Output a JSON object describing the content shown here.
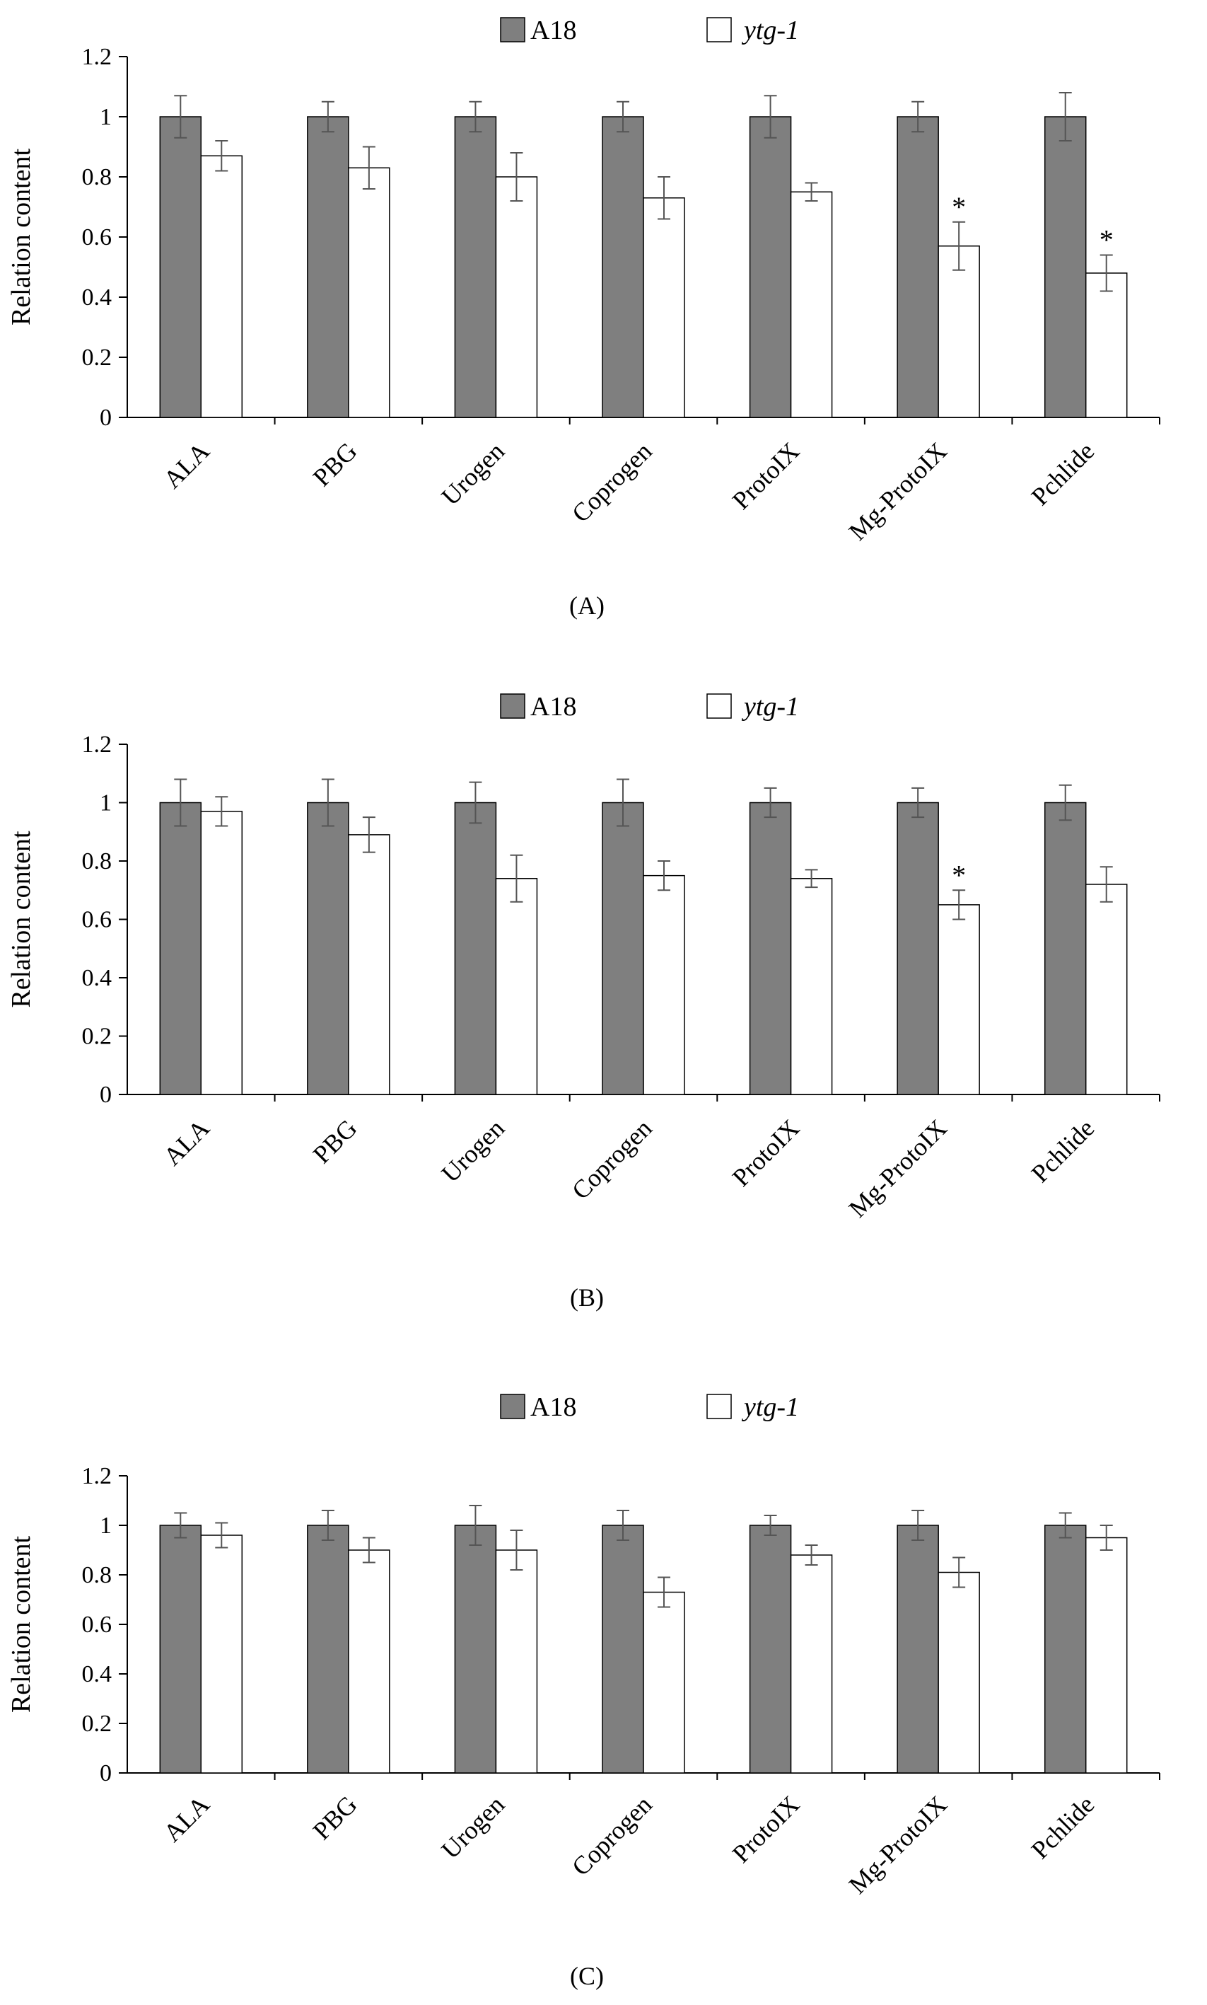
{
  "colors": {
    "series1_fill": "#7f7f7f",
    "series2_fill": "#ffffff",
    "axis": "#000000",
    "error_bar": "#555555"
  },
  "chart_data": [
    {
      "type": "bar",
      "panel_label": "(A)",
      "ylabel": "Relation content",
      "xlabel": "",
      "ylim": [
        0,
        1.2
      ],
      "yticks": [
        "0",
        "0.2",
        "0.4",
        "0.6",
        "0.8",
        "1",
        "1.2"
      ],
      "categories": [
        "ALA",
        "PBG",
        "Urogen",
        "Coprogen",
        "ProtoIX",
        "Mg-ProtoIX",
        "Pchlide"
      ],
      "series": [
        {
          "name": "A18",
          "values": [
            1.0,
            1.0,
            1.0,
            1.0,
            1.0,
            1.0,
            1.0
          ],
          "errors": [
            0.07,
            0.05,
            0.05,
            0.05,
            0.07,
            0.05,
            0.08
          ]
        },
        {
          "name": "ytg-1",
          "values": [
            0.87,
            0.83,
            0.8,
            0.73,
            0.75,
            0.57,
            0.48
          ],
          "errors": [
            0.05,
            0.07,
            0.08,
            0.07,
            0.03,
            0.08,
            0.06
          ],
          "significant": [
            false,
            false,
            false,
            false,
            false,
            true,
            true
          ]
        }
      ],
      "significance_marker": "*"
    },
    {
      "type": "bar",
      "panel_label": "(B)",
      "ylabel": "Relation content",
      "xlabel": "",
      "ylim": [
        0,
        1.2
      ],
      "yticks": [
        "0",
        "0.2",
        "0.4",
        "0.6",
        "0.8",
        "1",
        "1.2"
      ],
      "categories": [
        "ALA",
        "PBG",
        "Urogen",
        "Coprogen",
        "ProtoIX",
        "Mg-ProtoIX",
        "Pchlide"
      ],
      "series": [
        {
          "name": "A18",
          "values": [
            1.0,
            1.0,
            1.0,
            1.0,
            1.0,
            1.0,
            1.0
          ],
          "errors": [
            0.08,
            0.08,
            0.07,
            0.08,
            0.05,
            0.05,
            0.06
          ]
        },
        {
          "name": "ytg-1",
          "values": [
            0.97,
            0.89,
            0.74,
            0.75,
            0.74,
            0.65,
            0.72
          ],
          "errors": [
            0.05,
            0.06,
            0.08,
            0.05,
            0.03,
            0.05,
            0.06
          ],
          "significant": [
            false,
            false,
            false,
            false,
            false,
            true,
            false
          ]
        }
      ],
      "significance_marker": "*"
    },
    {
      "type": "bar",
      "panel_label": "(C)",
      "ylabel": "Relation content",
      "xlabel": "",
      "ylim": [
        0,
        1.2
      ],
      "yticks": [
        "0",
        "0.2",
        "0.4",
        "0.6",
        "0.8",
        "1",
        "1.2"
      ],
      "categories": [
        "ALA",
        "PBG",
        "Urogen",
        "Coprogen",
        "ProtoIX",
        "Mg-ProtoIX",
        "Pchlide"
      ],
      "series": [
        {
          "name": "A18",
          "values": [
            1.0,
            1.0,
            1.0,
            1.0,
            1.0,
            1.0,
            1.0
          ],
          "errors": [
            0.05,
            0.06,
            0.08,
            0.06,
            0.04,
            0.06,
            0.05
          ]
        },
        {
          "name": "ytg-1",
          "values": [
            0.96,
            0.9,
            0.9,
            0.73,
            0.88,
            0.81,
            0.95
          ],
          "errors": [
            0.05,
            0.05,
            0.08,
            0.06,
            0.04,
            0.06,
            0.05
          ],
          "significant": [
            false,
            false,
            false,
            false,
            false,
            false,
            false
          ]
        }
      ],
      "significance_marker": "*"
    }
  ]
}
